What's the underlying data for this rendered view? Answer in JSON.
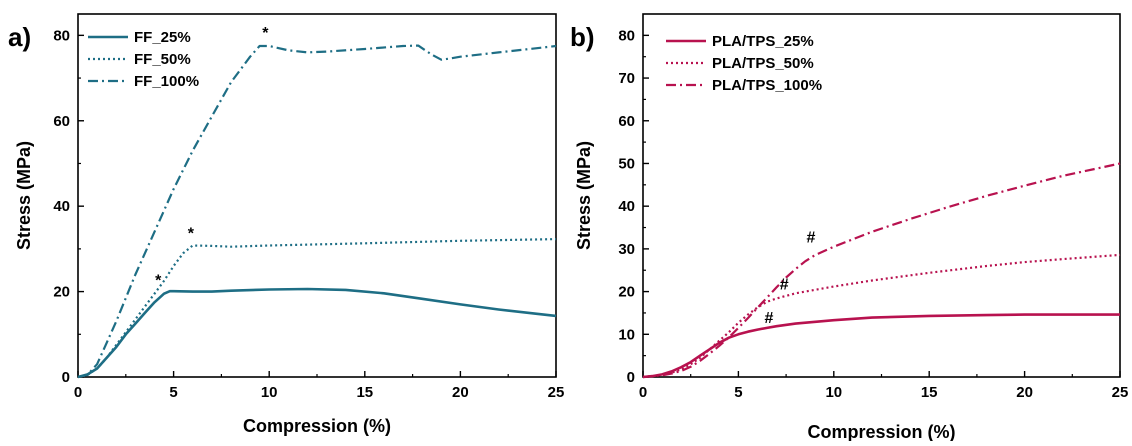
{
  "colors": {
    "ff": "#1e6e85",
    "pla": "#b8124f",
    "axis": "#000000"
  },
  "chart_data": [
    {
      "type": "line",
      "panel_label": "a)",
      "xlabel": "Compression (%)",
      "ylabel": "Stress (MPa)",
      "xlim": [
        0,
        25
      ],
      "ylim": [
        0,
        85
      ],
      "xticks": [
        0,
        5,
        10,
        15,
        20,
        25
      ],
      "yticks": [
        0,
        20,
        40,
        60,
        80
      ],
      "grid": false,
      "legend_position": "top-left",
      "series": [
        {
          "name": "FF_25%",
          "style": "solid",
          "x": [
            0,
            0.5,
            1,
            1.5,
            2,
            2.5,
            3,
            3.5,
            4,
            4.5,
            4.8,
            5,
            6,
            7,
            8,
            10,
            12,
            14,
            16,
            18,
            20,
            22,
            24,
            25
          ],
          "y": [
            0,
            0.6,
            2,
            4.5,
            7,
            10,
            12.5,
            15,
            17.5,
            19.5,
            20.1,
            20.1,
            20,
            20,
            20.2,
            20.5,
            20.6,
            20.4,
            19.6,
            18.3,
            17,
            15.8,
            14.8,
            14.3
          ]
        },
        {
          "name": "FF_50%",
          "style": "dotted",
          "x": [
            0,
            0.5,
            1,
            1.5,
            2,
            2.5,
            3,
            3.5,
            4,
            4.5,
            5,
            5.5,
            6,
            7,
            8,
            10,
            15,
            20,
            25
          ],
          "y": [
            0,
            0.5,
            2,
            4.5,
            7.5,
            10.5,
            13.5,
            16.5,
            19.5,
            22.5,
            26,
            29,
            30.8,
            30.7,
            30.5,
            30.8,
            31.3,
            31.9,
            32.3
          ]
        },
        {
          "name": "FF_100%",
          "style": "dashdot",
          "x": [
            0,
            0.5,
            1,
            1.5,
            2,
            3,
            4,
            5,
            6,
            7,
            8,
            9,
            9.5,
            10,
            11,
            12,
            13,
            15,
            17,
            17.8,
            18.5,
            19,
            19.5,
            20,
            22,
            24,
            25
          ],
          "y": [
            0,
            0.5,
            3,
            8,
            13,
            24,
            34,
            44,
            53,
            61,
            69,
            75,
            77.5,
            77.5,
            76.5,
            76,
            76.2,
            76.8,
            77.5,
            77.6,
            75.5,
            74.3,
            74.6,
            75,
            76,
            77,
            77.5
          ]
        }
      ],
      "annotations": [
        {
          "text": "*",
          "x": 4.2,
          "y": 20.5
        },
        {
          "text": "*",
          "x": 5.9,
          "y": 31.5
        },
        {
          "text": "*",
          "x": 9.8,
          "y": 78.5
        }
      ]
    },
    {
      "type": "line",
      "panel_label": "b)",
      "xlabel": "Compression (%)",
      "ylabel": "Stress (MPa)",
      "xlim": [
        0,
        25
      ],
      "ylim": [
        0,
        85
      ],
      "xticks": [
        0,
        5,
        10,
        15,
        20,
        25
      ],
      "yticks": [
        0,
        10,
        20,
        30,
        40,
        50,
        60,
        70,
        80
      ],
      "grid": false,
      "legend_position": "top-left",
      "series": [
        {
          "name": "PLA/TPS_25%",
          "style": "solid",
          "x": [
            0,
            0.5,
            1,
            1.5,
            2,
            2.5,
            3,
            3.5,
            4,
            4.5,
            5,
            5.5,
            6,
            6.5,
            7,
            8,
            10,
            12,
            15,
            18,
            20,
            22,
            25
          ],
          "y": [
            0,
            0.2,
            0.6,
            1.3,
            2.3,
            3.5,
            5,
            6.5,
            8,
            9.2,
            10,
            10.6,
            11.1,
            11.5,
            11.9,
            12.5,
            13.3,
            13.9,
            14.3,
            14.5,
            14.6,
            14.6,
            14.6
          ]
        },
        {
          "name": "PLA/TPS_50%",
          "style": "dotted",
          "x": [
            0,
            0.5,
            1,
            1.5,
            2,
            2.5,
            3,
            3.5,
            4,
            4.5,
            5,
            5.5,
            6,
            6.5,
            7,
            7.5,
            8,
            10,
            12,
            15,
            18,
            20,
            22,
            25
          ],
          "y": [
            0,
            0.2,
            0.5,
            1,
            1.8,
            3,
            4.5,
            6.5,
            8.5,
            10.5,
            12.7,
            14.6,
            16.3,
            17.6,
            18.4,
            19,
            19.6,
            21.2,
            22.6,
            24.4,
            26,
            26.9,
            27.6,
            28.6
          ]
        },
        {
          "name": "PLA/TPS_100%",
          "style": "dashdot",
          "x": [
            0,
            0.5,
            1,
            1.5,
            2,
            2.5,
            3,
            3.5,
            4,
            4.5,
            5,
            5.5,
            6,
            6.5,
            7,
            7.5,
            8,
            8.5,
            9,
            10,
            12,
            14,
            16,
            18,
            20,
            22,
            25
          ],
          "y": [
            0,
            0.2,
            0.4,
            0.8,
            1.4,
            2.4,
            3.8,
            5.5,
            7.3,
            9.3,
            11.5,
            13.8,
            16.2,
            18.6,
            21,
            23.3,
            25.3,
            27.1,
            28.5,
            30.5,
            34,
            37,
            39.8,
            42.4,
            44.8,
            47.1,
            50
          ]
        }
      ],
      "annotations": [
        {
          "text": "#",
          "x": 8.8,
          "y": 30.5
        },
        {
          "text": "#",
          "x": 7.4,
          "y": 19.5
        },
        {
          "text": "#",
          "x": 6.6,
          "y": 11.7
        }
      ]
    }
  ]
}
